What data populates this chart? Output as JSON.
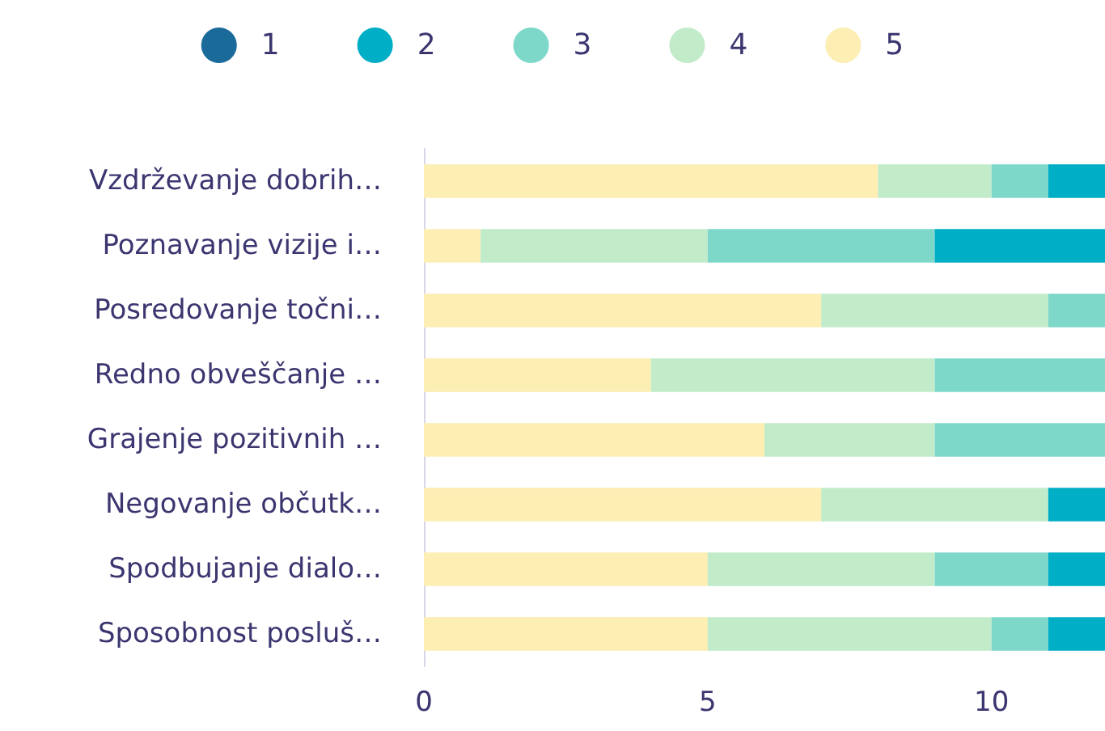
{
  "chart_data": {
    "type": "bar",
    "orientation": "horizontal",
    "stacked": true,
    "legend": "top",
    "grid": false,
    "categories": [
      "Vzdrževanje dobrih…",
      "Poznavanje vizije i…",
      "Posredovanje točni…",
      "Redno obveščanje …",
      "Grajenje pozitivnih …",
      "Negovanje občutk…",
      "Spodbujanje dialo…",
      "Sposobnost posluš…"
    ],
    "xlim": [
      0,
      12
    ],
    "xticks": [
      0,
      5,
      10
    ],
    "series": [
      {
        "name": "5",
        "color": "#fdeeb3",
        "values": [
          8,
          1,
          7,
          4,
          6,
          7,
          5,
          5
        ]
      },
      {
        "name": "4",
        "color": "#c2ebca",
        "values": [
          2,
          4,
          4,
          5,
          3,
          4,
          4,
          5
        ]
      },
      {
        "name": "3",
        "color": "#7dd8ca",
        "values": [
          1,
          4,
          1,
          3,
          3,
          0,
          2,
          1
        ]
      },
      {
        "name": "2",
        "color": "#00aec6",
        "values": [
          1,
          3,
          0,
          0,
          0,
          1,
          1,
          1
        ]
      },
      {
        "name": "1",
        "color": "#1a6a9a",
        "values": [
          0,
          0,
          0,
          0,
          0,
          0,
          0,
          0
        ]
      }
    ]
  }
}
